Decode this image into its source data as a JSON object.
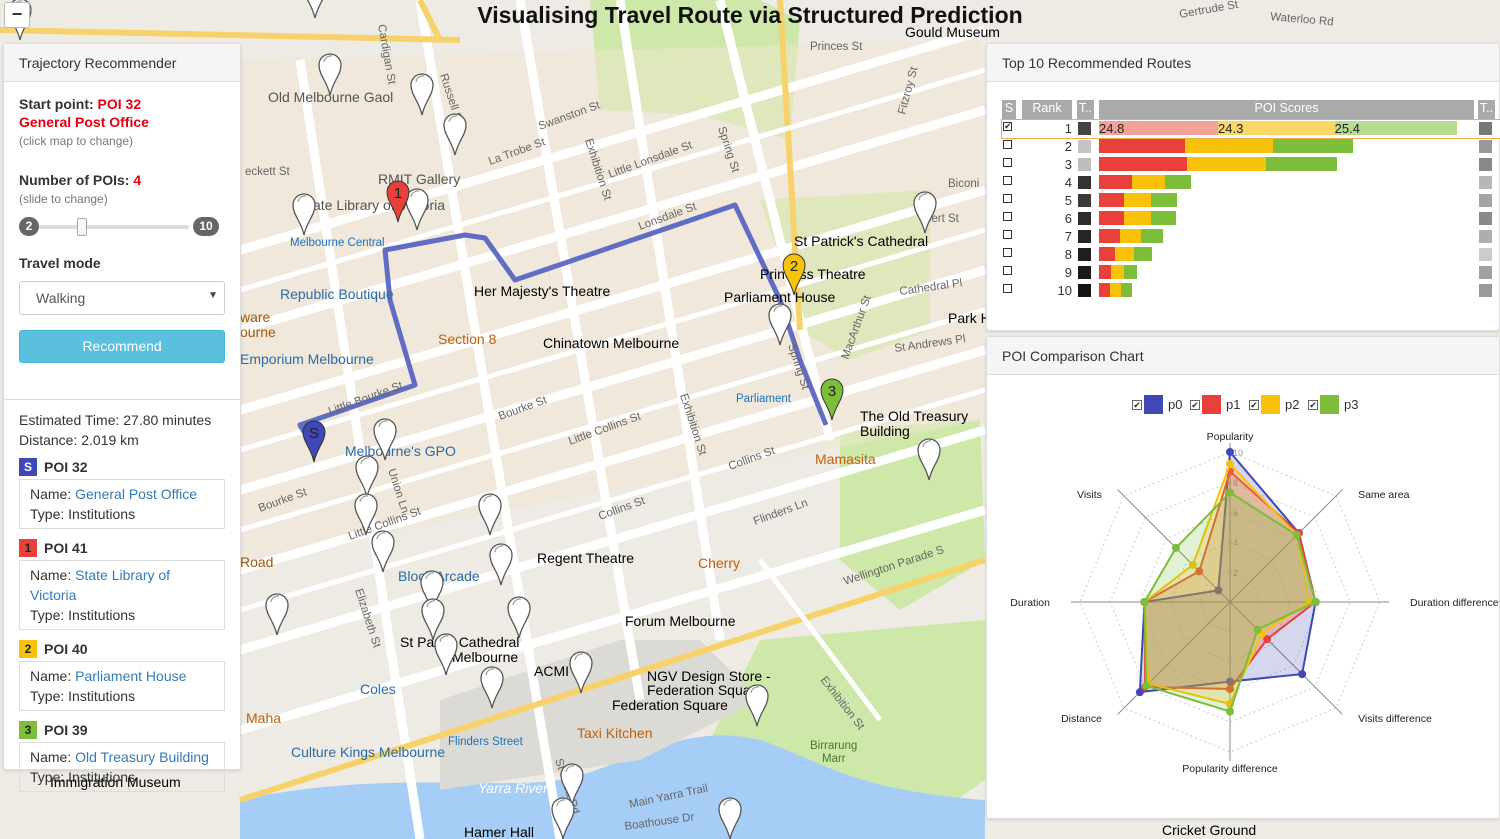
{
  "page_title": "Visualising Travel Route via Structured Prediction",
  "zoom_out_label": "−",
  "colors": {
    "route": "#5865c4",
    "poi_start": "#3f48b4",
    "poi_red": "#e8403a",
    "poi_yellow": "#f9c20a",
    "poi_green": "#7cbd3a",
    "recommend_btn": "#5bc0de"
  },
  "map": {
    "places": [
      "Old Melbourne Gaol",
      "RMIT Gallery",
      "State Library of Victoria",
      "Melbourne Central",
      "Republic Boutique",
      "Her Majesty's Theatre",
      "Princess Theatre",
      "Parliament House",
      "St Patrick's Cathedral",
      "Section 8",
      "Chinatown Melbourne",
      "Emporium Melbourne",
      "Parliament",
      "The Old Treasury Building",
      "Mamasita",
      "Melbourne's GPO",
      "Regent Theatre",
      "Cherry",
      "Block Arcade",
      "Forum Melbourne",
      "St Paul's Cathedral Melbourne",
      "ACMI",
      "NGV Design Store - Federation Square",
      "Federation Square",
      "Coles",
      "Flinders Street",
      "Taxi Kitchen",
      "Maha",
      "Culture Kings Melbourne",
      "Immigration Museum",
      "Yarra River",
      "Birrarung Marr",
      "Hamer Hall",
      "Cricket Ground",
      "Gould Museum",
      "Park H",
      "St Andrews Pl",
      "Cathedral Pl",
      "Gertrude St",
      "Waterloo Rd",
      "Princes St",
      "Biconi",
      "bert St"
    ],
    "streets": [
      "La Trobe St",
      "Little Lonsdale St",
      "Lonsdale St",
      "Exhibition St",
      "Spring St",
      "Russell St",
      "Swanston St",
      "Bourke St",
      "Little Bourke St",
      "Little Collins St",
      "Collins St",
      "Flinders Ln",
      "Flinders St",
      "Elizabeth St",
      "Wellington Parade S",
      "Exhibition St",
      "Main Yarra Trail",
      "Boathouse Dr",
      "MacArthur St",
      "Fitzroy St",
      "Union Ln",
      "St Kilda Rd"
    ],
    "route_markers": [
      "S",
      "1",
      "2",
      "3"
    ]
  },
  "left_panel": {
    "title": "Trajectory Recommender",
    "start_label": "Start point:",
    "start_poi": "POI 32",
    "start_name": "General Post Office",
    "start_hint": "(click map to change)",
    "num_pois_label": "Number of POIs:",
    "num_pois_value": "4",
    "num_pois_hint": "(slide to change)",
    "slider_min": "2",
    "slider_max": "10",
    "slider_value": 4,
    "travel_mode_label": "Travel mode",
    "travel_mode_value": "Walking",
    "recommend_label": "Recommend",
    "estimated_time": "Estimated Time: 27.80 minutes",
    "distance": "Distance: 2.019 km",
    "pois": [
      {
        "marker": "S",
        "id": "POI 32",
        "name_label": "Name:",
        "name": "General Post Office",
        "type_label": "Type:",
        "type": "Institutions",
        "color": "#3f48b4"
      },
      {
        "marker": "1",
        "id": "POI 41",
        "name_label": "Name:",
        "name": "State Library of Victoria",
        "type_label": "Type:",
        "type": "Institutions",
        "color": "#e8403a"
      },
      {
        "marker": "2",
        "id": "POI 40",
        "name_label": "Name:",
        "name": "Parliament House",
        "type_label": "Type:",
        "type": "Institutions",
        "color": "#f9c20a"
      },
      {
        "marker": "3",
        "id": "POI 39",
        "name_label": "Name:",
        "name": "Old Treasury Building",
        "type_label": "Type:",
        "type": "Institutions",
        "color": "#7cbd3a"
      }
    ]
  },
  "routes_panel": {
    "title": "Top 10 Recommended Routes",
    "headers": [
      "S",
      "Rank",
      "T..",
      "POI Scores",
      "T.."
    ],
    "rows": [
      {
        "rank": "1",
        "checked": true,
        "scores": [
          24.8,
          24.3,
          25.4
        ],
        "score_labels": [
          "24.8",
          "24.3",
          "25.4"
        ],
        "t1": "#444444",
        "t2": "#777777"
      },
      {
        "rank": "2",
        "checked": false,
        "scores": [
          18,
          18.2,
          16.8
        ],
        "t1": "#c4c4c4",
        "t2": "#999999"
      },
      {
        "rank": "3",
        "checked": false,
        "scores": [
          18.3,
          16.5,
          14.8
        ],
        "t1": "#bdbdbd",
        "t2": "#888888"
      },
      {
        "rank": "4",
        "checked": false,
        "scores": [
          6.8,
          7,
          5.4
        ],
        "t1": "#333333",
        "t2": "#b7b7b7"
      },
      {
        "rank": "5",
        "checked": false,
        "scores": [
          5.3,
          5.5,
          5.4
        ],
        "t1": "#3a3a3a",
        "t2": "#a5a5a5"
      },
      {
        "rank": "6",
        "checked": false,
        "scores": [
          5.3,
          5.5,
          5.2
        ],
        "t1": "#2d2d2d",
        "t2": "#8a8a8a"
      },
      {
        "rank": "7",
        "checked": false,
        "scores": [
          4.3,
          4.5,
          4.6
        ],
        "t1": "#262626",
        "t2": "#aeaeae"
      },
      {
        "rank": "8",
        "checked": false,
        "scores": [
          3.3,
          3.9,
          3.9
        ],
        "t1": "#1f1f1f",
        "t2": "#cccccc"
      },
      {
        "rank": "9",
        "checked": false,
        "scores": [
          2.6,
          2.7,
          2.6
        ],
        "t1": "#1a1a1a",
        "t2": "#a0a0a0"
      },
      {
        "rank": "10",
        "checked": false,
        "scores": [
          2.3,
          2.3,
          2.2
        ],
        "t1": "#151515",
        "t2": "#9a9a9a"
      }
    ]
  },
  "compare_panel": {
    "title": "POI Comparison Chart",
    "legend": [
      {
        "name": "p0",
        "color": "#3f48b4",
        "checked": true
      },
      {
        "name": "p1",
        "color": "#e8403a",
        "checked": true
      },
      {
        "name": "p2",
        "color": "#f9c20a",
        "checked": true
      },
      {
        "name": "p3",
        "color": "#7cbd3a",
        "checked": true
      }
    ]
  },
  "chart_data": {
    "type": "radar",
    "axes": [
      "Popularity",
      "Same area",
      "Duration difference",
      "Visits difference",
      "Popularity difference",
      "Distance",
      "Duration",
      "Visits"
    ],
    "range": [
      0,
      10
    ],
    "tick_labels": [
      "2",
      "4",
      "6",
      "8",
      "10"
    ],
    "series": [
      {
        "name": "p0",
        "values": [
          10,
          6.5,
          5.7,
          6.8,
          5.3,
          8.5,
          5.7,
          1.1
        ]
      },
      {
        "name": "p1",
        "values": [
          8.7,
          6.5,
          5.7,
          3.5,
          5.8,
          8,
          5.7,
          2.9
        ]
      },
      {
        "name": "p2",
        "values": [
          9.2,
          6.3,
          5.3,
          3,
          6.8,
          7.7,
          5.7,
          3.5
        ]
      },
      {
        "name": "p3",
        "values": [
          7.3,
          6.3,
          5.7,
          2.6,
          7.3,
          7.9,
          5.7,
          5.1
        ]
      }
    ]
  }
}
